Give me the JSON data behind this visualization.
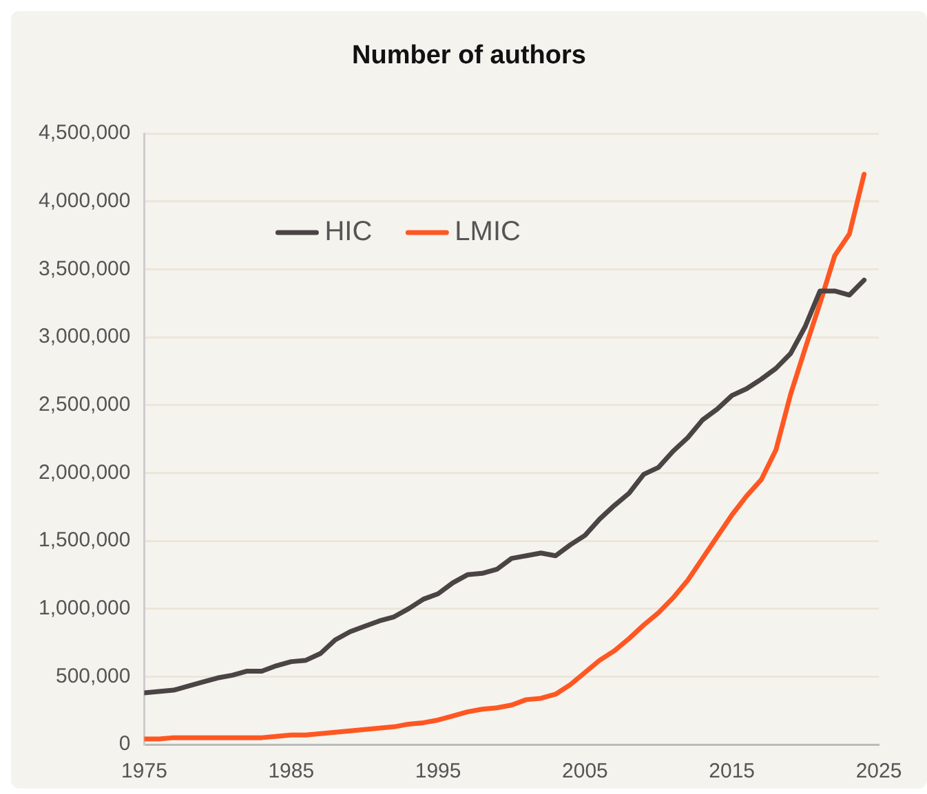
{
  "chart_data": {
    "type": "line",
    "title": "Number of authors",
    "x": [
      1975,
      1976,
      1977,
      1978,
      1979,
      1980,
      1981,
      1982,
      1983,
      1984,
      1985,
      1986,
      1987,
      1988,
      1989,
      1990,
      1991,
      1992,
      1993,
      1994,
      1995,
      1996,
      1997,
      1998,
      1999,
      2000,
      2001,
      2002,
      2003,
      2004,
      2005,
      2006,
      2007,
      2008,
      2009,
      2010,
      2011,
      2012,
      2013,
      2014,
      2015,
      2016,
      2017,
      2018,
      2019,
      2020,
      2021,
      2022,
      2023,
      2024
    ],
    "series": [
      {
        "name": "HIC",
        "color": "#4a4444",
        "values": [
          380000,
          390000,
          400000,
          430000,
          460000,
          490000,
          510000,
          540000,
          540000,
          580000,
          610000,
          620000,
          670000,
          770000,
          830000,
          870000,
          910000,
          940000,
          1000000,
          1070000,
          1110000,
          1190000,
          1250000,
          1260000,
          1290000,
          1370000,
          1390000,
          1410000,
          1390000,
          1470000,
          1540000,
          1660000,
          1760000,
          1850000,
          1990000,
          2040000,
          2160000,
          2260000,
          2390000,
          2470000,
          2570000,
          2620000,
          2690000,
          2770000,
          2880000,
          3080000,
          3340000,
          3340000,
          3310000,
          3420000
        ]
      },
      {
        "name": "LMIC",
        "color": "#ff5722",
        "values": [
          40000,
          40000,
          50000,
          50000,
          50000,
          50000,
          50000,
          50000,
          50000,
          60000,
          70000,
          70000,
          80000,
          90000,
          100000,
          110000,
          120000,
          130000,
          150000,
          160000,
          180000,
          210000,
          240000,
          260000,
          270000,
          290000,
          330000,
          340000,
          370000,
          440000,
          530000,
          620000,
          690000,
          780000,
          880000,
          970000,
          1080000,
          1210000,
          1370000,
          1530000,
          1690000,
          1830000,
          1950000,
          2170000,
          2580000,
          2920000,
          3250000,
          3600000,
          3760000,
          4200000
        ]
      }
    ],
    "xlim": [
      1975,
      2025
    ],
    "xticks": [
      {
        "value": 1975,
        "label": "1975"
      },
      {
        "value": 1985,
        "label": "1985"
      },
      {
        "value": 1995,
        "label": "1995"
      },
      {
        "value": 2005,
        "label": "2005"
      },
      {
        "value": 2015,
        "label": "2015"
      },
      {
        "value": 2025,
        "label": "2025"
      }
    ],
    "ylim": [
      0,
      4500000
    ],
    "yticks": [
      0,
      {
        "value": 500000,
        "label": "500,000"
      },
      {
        "value": 1000000,
        "label": "1,000,000"
      },
      {
        "value": 1500000,
        "label": "1,500,000"
      },
      {
        "value": 2000000,
        "label": "2,000,000"
      },
      {
        "value": 2500000,
        "label": "2,500,000"
      },
      {
        "value": 3000000,
        "label": "3,000,000"
      },
      {
        "value": 3500000,
        "label": "3,500,000"
      },
      {
        "value": 4000000,
        "label": "4,000,000"
      },
      {
        "value": 4500000,
        "label": "4,500,000"
      }
    ],
    "grid": "y",
    "legend": "top left",
    "marker": "none",
    "line_style": "solid"
  }
}
